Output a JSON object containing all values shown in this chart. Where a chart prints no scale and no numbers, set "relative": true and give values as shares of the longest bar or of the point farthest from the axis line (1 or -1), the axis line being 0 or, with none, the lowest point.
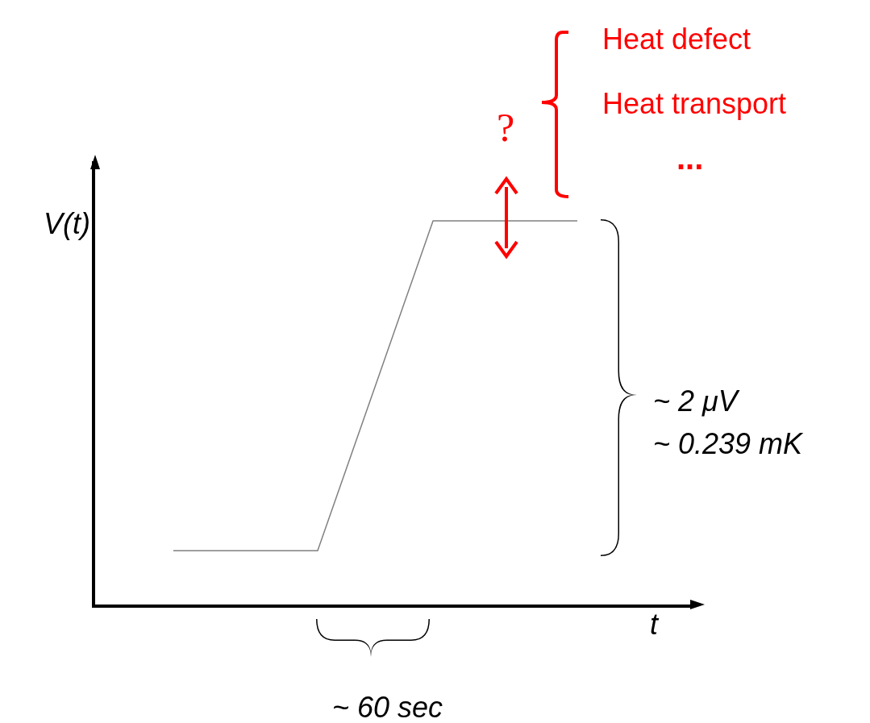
{
  "chart_data": {
    "type": "line",
    "relative": true,
    "xlabel": "t",
    "ylabel": "V(t)",
    "marker": "none",
    "color": "#808080",
    "categories": [
      null,
      null,
      null,
      null,
      null,
      null,
      null,
      null,
      null,
      null,
      null,
      null,
      null,
      null,
      null
    ],
    "values": [
      0.14,
      0.14,
      0.14,
      0.14,
      0.14,
      0.14,
      0.355,
      0.57,
      0.785,
      1,
      1,
      1,
      1,
      1,
      1
    ],
    "annotations": [
      "~ 2 μV",
      "~ 0.239 mK",
      "~ 60 sec",
      "?",
      "Heat defect",
      "Heat transport",
      "..."
    ]
  }
}
